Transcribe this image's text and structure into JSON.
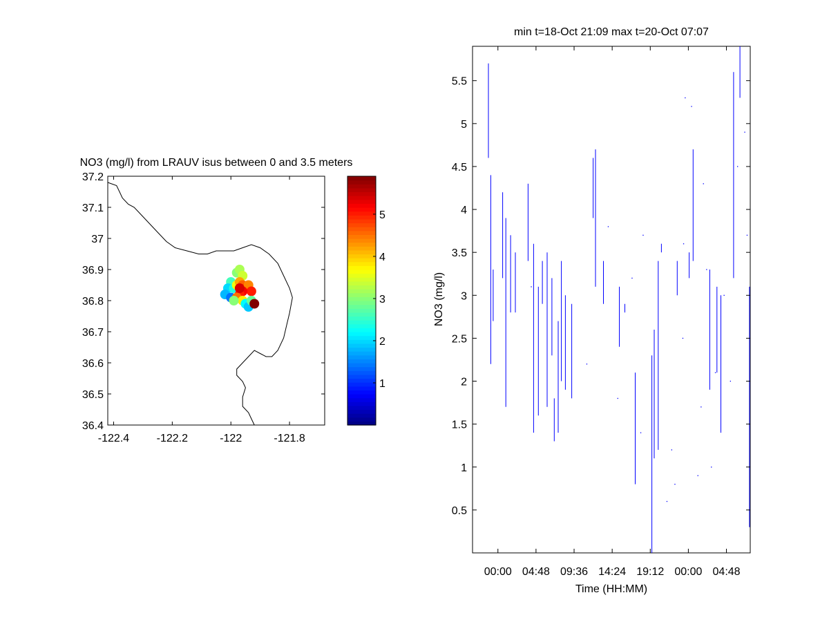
{
  "chart_data": [
    {
      "type": "scatter",
      "title": "NO3 (mg/l) from LRAUV isus between 0 and 3.5 meters",
      "xlabel": "",
      "ylabel": "",
      "xlim": [
        -122.42,
        -121.68
      ],
      "ylim": [
        36.4,
        37.2
      ],
      "xticks": [
        -122.4,
        -122.2,
        -122,
        -121.8
      ],
      "xtick_labels": [
        "-122.4",
        "-122.2",
        "-122",
        "-121.8"
      ],
      "yticks": [
        36.4,
        36.5,
        36.6,
        36.7,
        36.8,
        36.9,
        37,
        37.1,
        37.2
      ],
      "ytick_labels": [
        "36.4",
        "36.5",
        "36.6",
        "36.7",
        "36.8",
        "36.9",
        "37",
        "37.1",
        "37.2"
      ],
      "colorbar": {
        "colormap": "jet",
        "range": [
          0,
          5.9
        ],
        "ticks": [
          1,
          2,
          3,
          4,
          5
        ],
        "tick_labels": [
          "1",
          "2",
          "3",
          "4",
          "5"
        ]
      },
      "coastline": [
        [
          -122.42,
          37.18
        ],
        [
          -122.39,
          37.17
        ],
        [
          -122.38,
          37.15
        ],
        [
          -122.37,
          37.13
        ],
        [
          -122.35,
          37.11
        ],
        [
          -122.33,
          37.1
        ],
        [
          -122.31,
          37.08
        ],
        [
          -122.28,
          37.05
        ],
        [
          -122.25,
          37.02
        ],
        [
          -122.22,
          36.99
        ],
        [
          -122.19,
          36.97
        ],
        [
          -122.15,
          36.96
        ],
        [
          -122.11,
          36.95
        ],
        [
          -122.08,
          36.95
        ],
        [
          -122.05,
          36.96
        ],
        [
          -122.02,
          36.96
        ],
        [
          -121.99,
          36.96
        ],
        [
          -121.96,
          36.97
        ],
        [
          -121.93,
          36.98
        ],
        [
          -121.9,
          36.97
        ],
        [
          -121.87,
          36.95
        ],
        [
          -121.84,
          36.92
        ],
        [
          -121.82,
          36.88
        ],
        [
          -121.8,
          36.84
        ],
        [
          -121.79,
          36.81
        ],
        [
          -121.8,
          36.76
        ],
        [
          -121.81,
          36.72
        ],
        [
          -121.82,
          36.68
        ],
        [
          -121.84,
          36.64
        ],
        [
          -121.86,
          36.62
        ],
        [
          -121.88,
          36.62
        ],
        [
          -121.9,
          36.63
        ],
        [
          -121.92,
          36.64
        ],
        [
          -121.94,
          36.62
        ],
        [
          -121.96,
          36.6
        ],
        [
          -121.98,
          36.58
        ],
        [
          -121.98,
          36.56
        ],
        [
          -121.96,
          36.54
        ],
        [
          -121.95,
          36.52
        ],
        [
          -121.96,
          36.49
        ],
        [
          -121.96,
          36.46
        ],
        [
          -121.94,
          36.44
        ],
        [
          -121.93,
          36.42
        ],
        [
          -121.92,
          36.4
        ]
      ],
      "points": [
        {
          "x": -121.98,
          "y": 36.89,
          "v": 3.0
        },
        {
          "x": -121.97,
          "y": 36.9,
          "v": 3.2
        },
        {
          "x": -121.96,
          "y": 36.88,
          "v": 3.4
        },
        {
          "x": -122.0,
          "y": 36.86,
          "v": 2.6
        },
        {
          "x": -122.01,
          "y": 36.84,
          "v": 2.0
        },
        {
          "x": -122.02,
          "y": 36.82,
          "v": 1.8
        },
        {
          "x": -122.0,
          "y": 36.81,
          "v": 1.4
        },
        {
          "x": -121.99,
          "y": 36.84,
          "v": 2.4
        },
        {
          "x": -121.98,
          "y": 36.85,
          "v": 3.6
        },
        {
          "x": -121.97,
          "y": 36.86,
          "v": 4.2
        },
        {
          "x": -121.96,
          "y": 36.85,
          "v": 4.6
        },
        {
          "x": -121.95,
          "y": 36.84,
          "v": 4.8
        },
        {
          "x": -121.94,
          "y": 36.85,
          "v": 4.4
        },
        {
          "x": -121.93,
          "y": 36.83,
          "v": 5.0
        },
        {
          "x": -121.96,
          "y": 36.83,
          "v": 5.2
        },
        {
          "x": -121.97,
          "y": 36.82,
          "v": 5.0
        },
        {
          "x": -121.98,
          "y": 36.81,
          "v": 4.5
        },
        {
          "x": -121.96,
          "y": 36.8,
          "v": 3.8
        },
        {
          "x": -121.95,
          "y": 36.79,
          "v": 2.2
        },
        {
          "x": -121.94,
          "y": 36.78,
          "v": 1.9
        },
        {
          "x": -121.93,
          "y": 36.8,
          "v": 2.8
        },
        {
          "x": -121.92,
          "y": 36.79,
          "v": 5.9
        },
        {
          "x": -121.99,
          "y": 36.8,
          "v": 3.0
        },
        {
          "x": -121.97,
          "y": 36.84,
          "v": 5.4
        }
      ]
    },
    {
      "type": "line",
      "title": "min t=18-Oct 21:09 max t=20-Oct 07:07",
      "xlabel": "Time (HH:MM)",
      "ylabel": "NO3 (mg/l)",
      "xlim_hours": [
        -3.2,
        31.8
      ],
      "ylim": [
        0,
        5.9
      ],
      "xticks_hours": [
        0,
        4.8,
        9.6,
        14.4,
        19.2,
        24,
        28.8
      ],
      "xtick_labels": [
        "00:00",
        "04:48",
        "09:36",
        "14:24",
        "19:12",
        "00:00",
        "04:48"
      ],
      "yticks": [
        0.5,
        1,
        1.5,
        2,
        2.5,
        3,
        3.5,
        4,
        4.5,
        5,
        5.5
      ],
      "ytick_labels": [
        "0.5",
        "1",
        "1.5",
        "2",
        "2.5",
        "3",
        "3.5",
        "4",
        "4.5",
        "5",
        "5.5"
      ],
      "line_color": "#0000ff",
      "segments": [
        {
          "t": -1.2,
          "y0": 4.6,
          "y1": 5.7
        },
        {
          "t": -0.9,
          "y0": 2.2,
          "y1": 4.4
        },
        {
          "t": -0.6,
          "y0": 2.7,
          "y1": 3.3
        },
        {
          "t": 0.6,
          "y0": 3.2,
          "y1": 4.2
        },
        {
          "t": 1.0,
          "y0": 1.7,
          "y1": 3.9
        },
        {
          "t": 1.6,
          "y0": 2.8,
          "y1": 3.7
        },
        {
          "t": 2.2,
          "y0": 2.8,
          "y1": 3.5
        },
        {
          "t": 3.8,
          "y0": 3.4,
          "y1": 4.3
        },
        {
          "t": 4.5,
          "y0": 1.4,
          "y1": 3.6
        },
        {
          "t": 5.1,
          "y0": 1.6,
          "y1": 3.1
        },
        {
          "t": 5.6,
          "y0": 2.9,
          "y1": 3.4
        },
        {
          "t": 6.2,
          "y0": 1.7,
          "y1": 3.5
        },
        {
          "t": 6.8,
          "y0": 2.3,
          "y1": 3.2
        },
        {
          "t": 7.1,
          "y0": 1.3,
          "y1": 1.8
        },
        {
          "t": 7.6,
          "y0": 1.4,
          "y1": 2.7
        },
        {
          "t": 8.0,
          "y0": 2.0,
          "y1": 3.4
        },
        {
          "t": 8.5,
          "y0": 1.9,
          "y1": 3.0
        },
        {
          "t": 9.3,
          "y0": 1.8,
          "y1": 2.9
        },
        {
          "t": 12.0,
          "y0": 3.9,
          "y1": 4.6
        },
        {
          "t": 12.3,
          "y0": 3.1,
          "y1": 4.7
        },
        {
          "t": 13.3,
          "y0": 2.9,
          "y1": 3.4
        },
        {
          "t": 15.3,
          "y0": 2.4,
          "y1": 3.1
        },
        {
          "t": 16.0,
          "y0": 2.8,
          "y1": 2.9
        },
        {
          "t": 17.3,
          "y0": 0.8,
          "y1": 2.1
        },
        {
          "t": 19.4,
          "y0": 0.0,
          "y1": 2.3
        },
        {
          "t": 19.7,
          "y0": 1.1,
          "y1": 2.6
        },
        {
          "t": 20.2,
          "y0": 1.2,
          "y1": 3.4
        },
        {
          "t": 20.6,
          "y0": 3.5,
          "y1": 3.6
        },
        {
          "t": 22.6,
          "y0": 3.0,
          "y1": 3.4
        },
        {
          "t": 24.1,
          "y0": 3.2,
          "y1": 3.5
        },
        {
          "t": 24.6,
          "y0": 3.4,
          "y1": 4.7
        },
        {
          "t": 26.7,
          "y0": 1.9,
          "y1": 3.3
        },
        {
          "t": 27.6,
          "y0": 2.1,
          "y1": 3.1
        },
        {
          "t": 28.1,
          "y0": 1.4,
          "y1": 3.0
        },
        {
          "t": 29.7,
          "y0": 3.2,
          "y1": 5.6
        },
        {
          "t": 30.5,
          "y0": 5.3,
          "y1": 5.9
        },
        {
          "t": 31.7,
          "y0": 0.3,
          "y1": 3.1
        }
      ],
      "dots": [
        {
          "t": 4.2,
          "y": 3.1
        },
        {
          "t": 11.2,
          "y": 2.2
        },
        {
          "t": 13.9,
          "y": 3.8
        },
        {
          "t": 15.1,
          "y": 1.8
        },
        {
          "t": 16.9,
          "y": 3.2
        },
        {
          "t": 18.3,
          "y": 3.7
        },
        {
          "t": 18.0,
          "y": 1.4
        },
        {
          "t": 21.3,
          "y": 0.6
        },
        {
          "t": 22.3,
          "y": 0.8
        },
        {
          "t": 21.9,
          "y": 1.2
        },
        {
          "t": 23.3,
          "y": 2.5
        },
        {
          "t": 23.4,
          "y": 3.6
        },
        {
          "t": 23.6,
          "y": 5.3
        },
        {
          "t": 24.4,
          "y": 5.2
        },
        {
          "t": 25.6,
          "y": 1.7
        },
        {
          "t": 25.9,
          "y": 4.3
        },
        {
          "t": 25.2,
          "y": 0.9
        },
        {
          "t": 26.3,
          "y": 3.3
        },
        {
          "t": 26.9,
          "y": 1.0
        },
        {
          "t": 27.4,
          "y": 2.1
        },
        {
          "t": 28.5,
          "y": 3.0
        },
        {
          "t": 29.3,
          "y": 2.0
        },
        {
          "t": 30.2,
          "y": 4.5
        },
        {
          "t": 31.1,
          "y": 4.9
        },
        {
          "t": 31.4,
          "y": 3.7
        }
      ]
    }
  ]
}
